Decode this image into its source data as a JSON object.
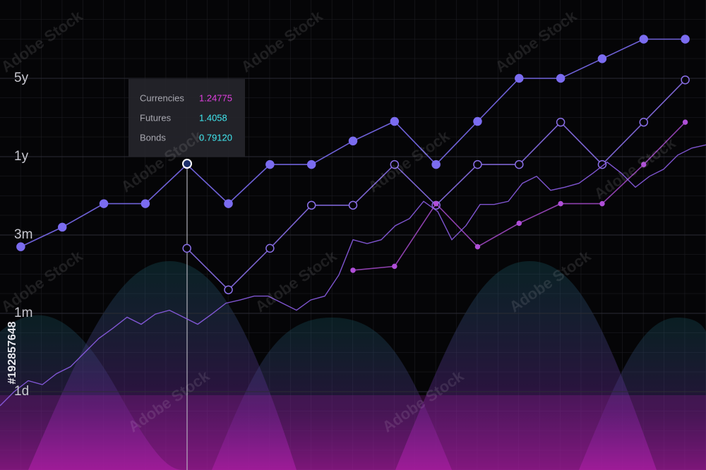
{
  "chart_data": {
    "type": "line",
    "ylim": [
      0,
      6
    ],
    "yticks": [
      {
        "value": 5,
        "label": "5y"
      },
      {
        "value": 4,
        "label": "1y"
      },
      {
        "value": 3,
        "label": "3m"
      },
      {
        "value": 2,
        "label": "1m"
      },
      {
        "value": 1,
        "label": "1d"
      }
    ],
    "xlim": [
      0,
      17
    ],
    "grid": true,
    "series": [
      {
        "color": "#7b6cf0",
        "marker": "filled",
        "x": [
          0.5,
          1.5,
          2.5,
          3.5,
          4.5,
          5.5,
          6.5,
          7.5,
          8.5,
          9.5,
          10.5,
          11.5,
          12.5,
          13.5,
          14.5,
          15.5,
          16.5
        ],
        "values": [
          2.85,
          3.1,
          3.4,
          3.4,
          3.9,
          3.4,
          3.9,
          3.9,
          4.2,
          4.45,
          3.9,
          4.45,
          5,
          5,
          5.25,
          5.5,
          5.5
        ]
      },
      {
        "color": "#8a6fe8",
        "marker": "hollow",
        "x": [
          4.5,
          5.5,
          6.5,
          7.5,
          8.5,
          9.5,
          10.5,
          11.5,
          12.5,
          13.5,
          14.5,
          15.5,
          16.5
        ],
        "values": [
          2.83,
          2.3,
          2.83,
          3.38,
          3.38,
          3.9,
          3.38,
          3.9,
          3.9,
          4.44,
          3.9,
          4.44,
          4.98
        ]
      },
      {
        "color": "#b04fd8",
        "marker": "small",
        "x": [
          8.5,
          9.5,
          10.5,
          11.5,
          12.5,
          13.5,
          14.5,
          15.5,
          16.5
        ],
        "values": [
          2.55,
          2.6,
          3.4,
          2.85,
          3.15,
          3.4,
          3.4,
          3.9,
          4.44
        ]
      },
      {
        "color": "#8c5de6",
        "marker": "none",
        "x": [
          0,
          0.34,
          0.68,
          1.02,
          1.36,
          1.7,
          2.04,
          2.38,
          2.72,
          3.06,
          3.4,
          3.74,
          4.08,
          4.42,
          4.76,
          5.1,
          5.44,
          5.78,
          6.12,
          6.46,
          6.8,
          7.14,
          7.48,
          7.82,
          8.16,
          8.5,
          8.84,
          9.18,
          9.52,
          9.86,
          10.2,
          10.54,
          10.88,
          11.22,
          11.56,
          11.9,
          12.24,
          12.58,
          12.92,
          13.26,
          13.6,
          13.94,
          14.28,
          14.62,
          14.96,
          15.3,
          15.64,
          15.98,
          16.32,
          16.66,
          17
        ],
        "values": [
          0.82,
          1.0,
          1.14,
          1.09,
          1.23,
          1.32,
          1.5,
          1.68,
          1.81,
          1.95,
          1.86,
          1.99,
          2.04,
          1.95,
          1.86,
          1.99,
          2.13,
          2.17,
          2.22,
          2.22,
          2.13,
          2.04,
          2.17,
          2.22,
          2.49,
          2.94,
          2.89,
          2.94,
          3.12,
          3.21,
          3.43,
          3.3,
          2.94,
          3.12,
          3.39,
          3.39,
          3.43,
          3.66,
          3.75,
          3.57,
          3.61,
          3.66,
          3.79,
          3.93,
          3.79,
          3.61,
          3.75,
          3.84,
          4.02,
          4.11,
          4.15
        ]
      }
    ],
    "tooltip": [
      {
        "name": "Currencies",
        "value": "1.24775",
        "color": "#e040e0"
      },
      {
        "name": "Futures",
        "value": "1.4058",
        "color": "#40e8f0"
      },
      {
        "name": "Bonds",
        "value": "0.79120",
        "color": "#40e8f0"
      }
    ],
    "watermark": "Adobe Stock",
    "stock_id": "#192857648"
  }
}
